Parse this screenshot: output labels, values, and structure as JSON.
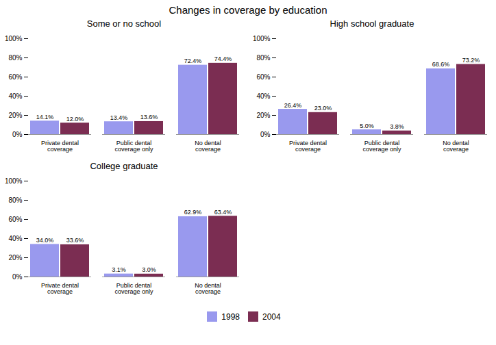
{
  "title": "Changes in coverage by education",
  "chart_data": [
    {
      "type": "bar",
      "title": "Some or no school",
      "categories": [
        "Private dental coverage",
        "Public dental coverage only",
        "No dental coverage"
      ],
      "series": [
        {
          "name": "1998",
          "color": "#9999ee",
          "values": [
            14.1,
            13.4,
            72.4
          ],
          "value_labels": [
            "14.1%",
            "13.4%",
            "72.4%"
          ]
        },
        {
          "name": "2004",
          "color": "#7b2d52",
          "values": [
            12.0,
            13.6,
            74.4
          ],
          "value_labels": [
            "12.0%",
            "13.6%",
            "74.4%"
          ]
        }
      ],
      "ylim": [
        0,
        100
      ],
      "yticks": [
        {
          "value": 0,
          "label": "0%"
        },
        {
          "value": 20,
          "label": "20%"
        },
        {
          "value": 40,
          "label": "40%"
        },
        {
          "value": 60,
          "label": "60%"
        },
        {
          "value": 80,
          "label": "80%"
        },
        {
          "value": 100,
          "label": "100%"
        }
      ],
      "grid": false,
      "data_labels": true,
      "legend": "bottom"
    },
    {
      "type": "bar",
      "title": "High school graduate",
      "categories": [
        "Private dental coverage",
        "Public dental coverage only",
        "No dental coverage"
      ],
      "series": [
        {
          "name": "1998",
          "color": "#9999ee",
          "values": [
            26.4,
            5.0,
            68.6
          ],
          "value_labels": [
            "26.4%",
            "5.0%",
            "68.6%"
          ]
        },
        {
          "name": "2004",
          "color": "#7b2d52",
          "values": [
            23.0,
            3.8,
            73.2
          ],
          "value_labels": [
            "23.0%",
            "3.8%",
            "73.2%"
          ]
        }
      ],
      "ylim": [
        0,
        100
      ],
      "yticks": [
        {
          "value": 0,
          "label": "0%"
        },
        {
          "value": 20,
          "label": "20%"
        },
        {
          "value": 40,
          "label": "40%"
        },
        {
          "value": 60,
          "label": "60%"
        },
        {
          "value": 80,
          "label": "80%"
        },
        {
          "value": 100,
          "label": "100%"
        }
      ],
      "grid": false,
      "data_labels": true,
      "legend": "bottom"
    },
    {
      "type": "bar",
      "title": "College graduate",
      "categories": [
        "Private dental coverage",
        "Public dental coverage only",
        "No dental coverage"
      ],
      "series": [
        {
          "name": "1998",
          "color": "#9999ee",
          "values": [
            34.0,
            3.1,
            62.9
          ],
          "value_labels": [
            "34.0%",
            "3.1%",
            "62.9%"
          ]
        },
        {
          "name": "2004",
          "color": "#7b2d52",
          "values": [
            33.6,
            3.0,
            63.4
          ],
          "value_labels": [
            "33.6%",
            "3.0%",
            "63.4%"
          ]
        }
      ],
      "ylim": [
        0,
        100
      ],
      "yticks": [
        {
          "value": 0,
          "label": "0%"
        },
        {
          "value": 20,
          "label": "20%"
        },
        {
          "value": 40,
          "label": "40%"
        },
        {
          "value": 60,
          "label": "60%"
        },
        {
          "value": 80,
          "label": "80%"
        },
        {
          "value": 100,
          "label": "100%"
        }
      ],
      "grid": false,
      "data_labels": true,
      "legend": "bottom"
    }
  ]
}
